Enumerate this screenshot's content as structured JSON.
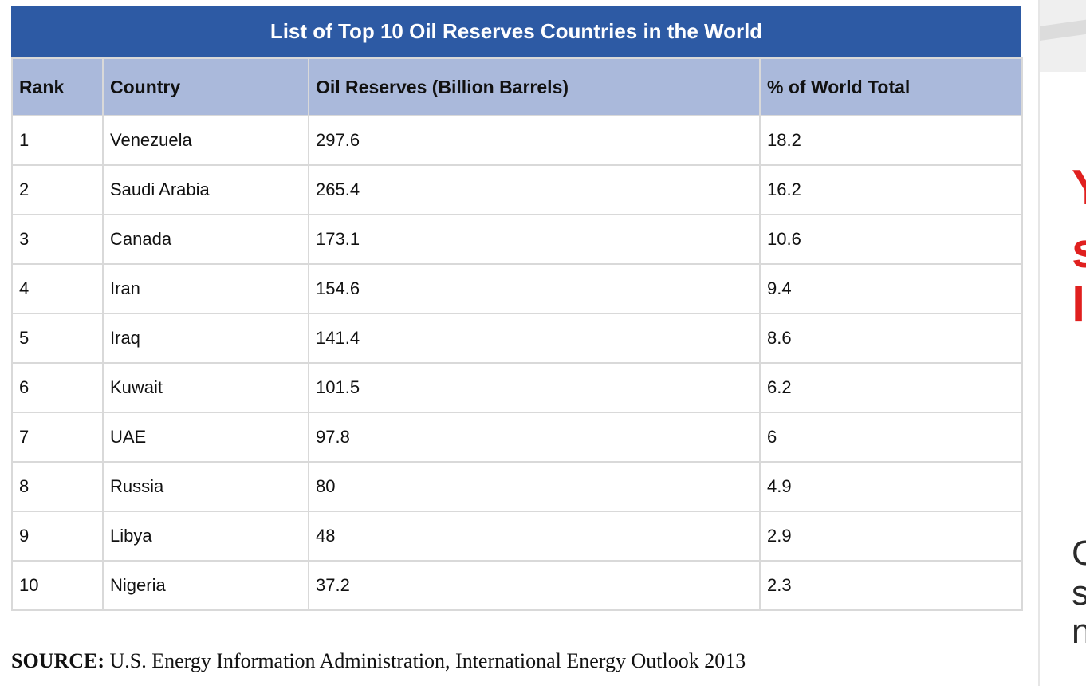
{
  "table": {
    "title": "List of Top 10 Oil Reserves Countries in the World",
    "headers": [
      "Rank",
      "Country",
      "Oil Reserves (Billion Barrels)",
      "% of World Total"
    ],
    "rows": [
      [
        "1",
        "Venezuela",
        "297.6",
        "18.2"
      ],
      [
        "2",
        "Saudi Arabia",
        "265.4",
        "16.2"
      ],
      [
        "3",
        "Canada",
        "173.1",
        "10.6"
      ],
      [
        "4",
        "Iran",
        "154.6",
        "9.4"
      ],
      [
        "5",
        "Iraq",
        "141.4",
        "8.6"
      ],
      [
        "6",
        "Kuwait",
        "101.5",
        "6.2"
      ],
      [
        "7",
        "UAE",
        "97.8",
        "6"
      ],
      [
        "8",
        "Russia",
        "80",
        "4.9"
      ],
      [
        "9",
        "Libya",
        "48",
        "2.9"
      ],
      [
        "10",
        "Nigeria",
        "37.2",
        "2.3"
      ]
    ]
  },
  "source": {
    "label": "SOURCE:",
    "text": " U.S. Energy Information Administration, International Energy Outlook 2013"
  },
  "side_ad": {
    "red_fragments": [
      "Y",
      "s",
      "l"
    ],
    "dark_fragments": [
      "G",
      "s",
      "n"
    ]
  },
  "colors": {
    "title_bg": "#2d5aa4",
    "header_bg": "#aab9db",
    "ad_red": "#e0201f"
  }
}
